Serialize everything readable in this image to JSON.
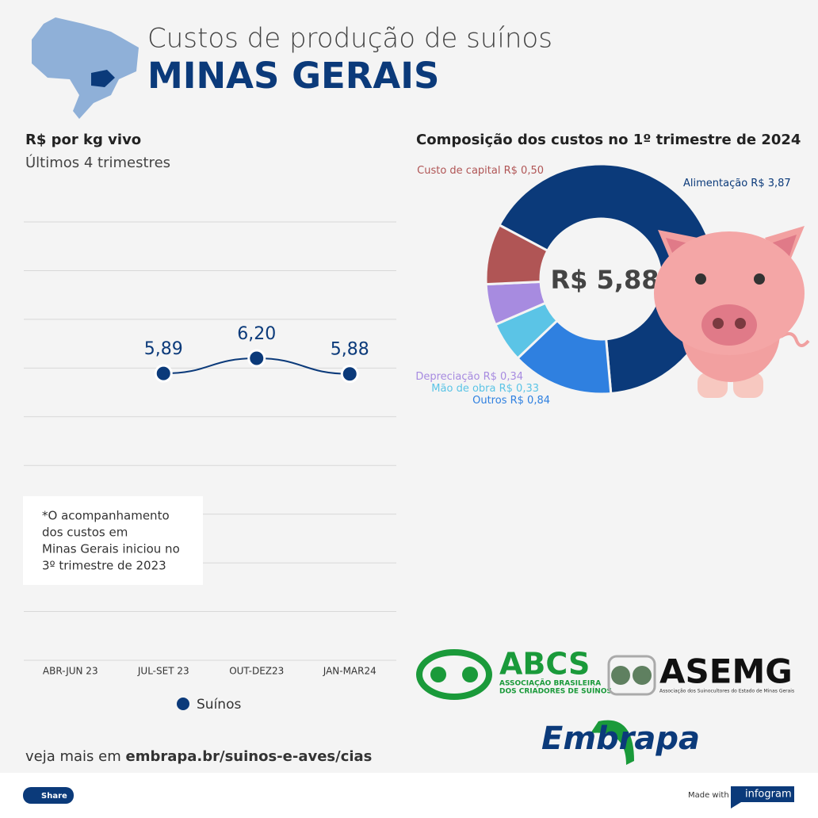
{
  "header": {
    "title": "Custos de produção de suínos",
    "subtitle": "MINAS GERAIS"
  },
  "chart_data": [
    {
      "type": "line",
      "title": "R$ por kg vivo",
      "subtitle": "Últimos 4 trimestres",
      "categories": [
        "ABR-JUN 23",
        "JUL-SET 23",
        "OUT-DEZ23",
        "JAN-MAR24"
      ],
      "series": [
        {
          "name": "Suínos",
          "color": "#0b3a7a",
          "values": [
            null,
            5.89,
            6.2,
            5.88
          ],
          "value_labels": [
            null,
            "5,89",
            "6,20",
            "5,88"
          ]
        }
      ],
      "ylim": [
        0,
        9
      ],
      "yticks": [
        0,
        1,
        2,
        3,
        4,
        5,
        6,
        7,
        8,
        9
      ],
      "grid": true,
      "legend": "bottom"
    },
    {
      "type": "pie",
      "title": "Composição dos custos no 1º trimestre de 2024",
      "center_label": "R$ 5,88",
      "categories": [
        "Alimentação",
        "Outros",
        "Mão de obra",
        "Depreciação",
        "Custo de capital"
      ],
      "values": [
        3.87,
        0.84,
        0.33,
        0.34,
        0.5
      ],
      "value_labels": [
        "R$ 3,87",
        "R$ 0,84",
        "R$ 0,33",
        "R$ 0,34",
        "R$ 0,50"
      ],
      "colors": [
        "#0b3a7a",
        "#2f80e0",
        "#5bc4e6",
        "#a78be0",
        "#b05555"
      ]
    }
  ],
  "note": [
    "*O acompanhamento",
    "dos custos em",
    "Minas Gerais iniciou no",
    "3º trimestre de 2023"
  ],
  "logos": {
    "abcs": {
      "name": "ABCS",
      "line1": "ASSOCIAÇÃO BRASILEIRA",
      "line2": "DOS CRIADORES DE SUÍNOS"
    },
    "asemg": {
      "name": "ASEMG",
      "subtitle": "Associação dos Suinocultores do Estado de Minas Gerais"
    },
    "embrapa": "Embrapa"
  },
  "footer": {
    "prefix": "veja mais em",
    "link": "embrapa.br/suinos-e-aves/cias",
    "share": "Share",
    "made_with": "Made with",
    "brand": "infogram"
  }
}
